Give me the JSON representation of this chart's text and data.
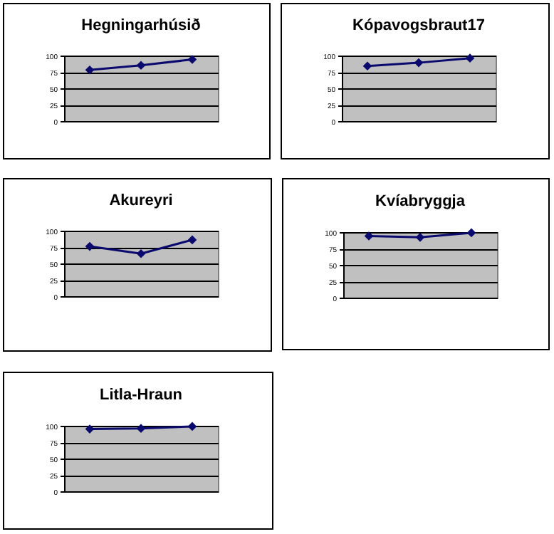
{
  "chart_data": [
    {
      "type": "line",
      "title": "Hegningarhúsið",
      "categories": [
        null,
        null,
        null
      ],
      "values": [
        78,
        85,
        94
      ],
      "color": "#0a0a6e",
      "ylim": [
        0,
        100
      ],
      "yticks": [
        0,
        25,
        50,
        75,
        100
      ],
      "grid": "y",
      "marker": "diamond",
      "tick_labels": "y"
    },
    {
      "type": "line",
      "title": "Kópavogsbraut17",
      "categories": [
        null,
        null,
        null
      ],
      "values": [
        84,
        89,
        96
      ],
      "color": "#0a0a6e",
      "ylim": [
        0,
        100
      ],
      "yticks": [
        0,
        25,
        50,
        75,
        100
      ],
      "grid": "y",
      "marker": "diamond",
      "tick_labels": "y"
    },
    {
      "type": "line",
      "title": "Akureyri",
      "categories": [
        null,
        null,
        null
      ],
      "values": [
        76,
        65,
        86
      ],
      "color": "#0a0a6e",
      "ylim": [
        0,
        100
      ],
      "yticks": [
        0,
        25,
        50,
        75,
        100
      ],
      "grid": "y",
      "marker": "diamond",
      "tick_labels": "y"
    },
    {
      "type": "line",
      "title": "Kvíabryggja",
      "categories": [
        null,
        null,
        null
      ],
      "values": [
        94,
        92,
        99
      ],
      "color": "#0a0a6e",
      "ylim": [
        0,
        100
      ],
      "yticks": [
        0,
        25,
        50,
        75,
        100
      ],
      "grid": "y",
      "marker": "diamond",
      "tick_labels": "y"
    },
    {
      "type": "line",
      "title": "Litla-Hraun",
      "categories": [
        null,
        null,
        null
      ],
      "values": [
        95,
        96,
        99
      ],
      "color": "#0a0a6e",
      "ylim": [
        0,
        100
      ],
      "yticks": [
        0,
        25,
        50,
        75,
        100
      ],
      "grid": "y",
      "marker": "diamond",
      "tick_labels": "y"
    }
  ]
}
